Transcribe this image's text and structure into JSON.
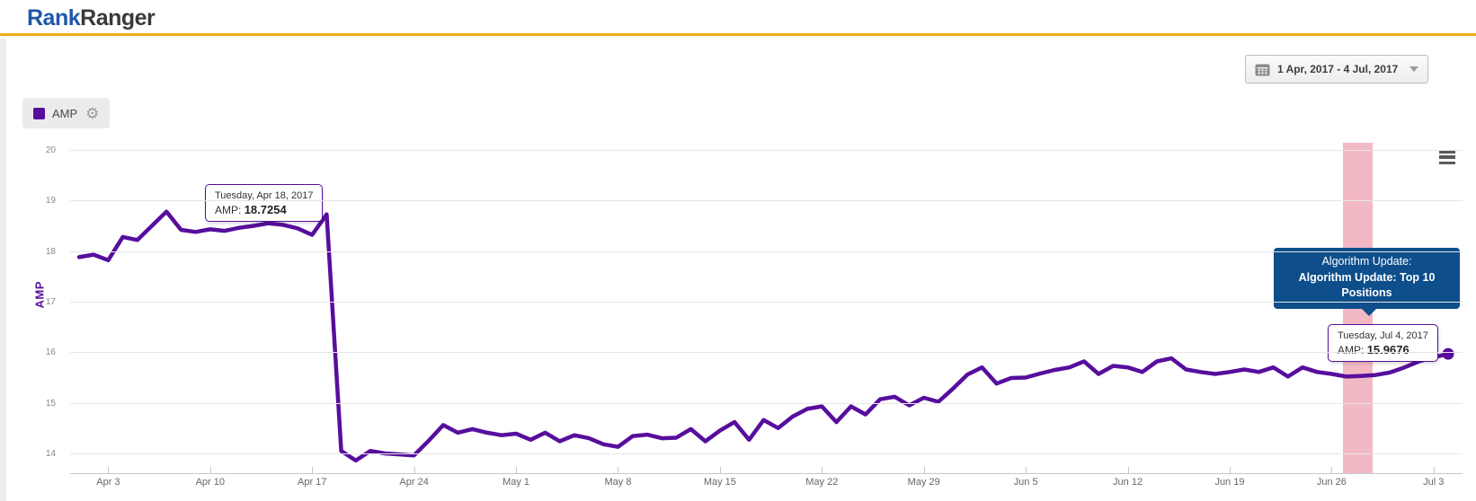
{
  "header": {
    "brand_primary": "Rank",
    "brand_secondary": "Ranger"
  },
  "toolbar": {
    "date_range_label": "1 Apr, 2017 - 4 Jul, 2017"
  },
  "legend": {
    "series_label": "AMP"
  },
  "colors": {
    "series_purple": "#570E9D",
    "brand_blue": "#1F57A9",
    "accent_gold": "#EFAD1D",
    "annotation_navy": "#0D4E8B",
    "band_pink": "#F2B8C4"
  },
  "tooltips": [
    {
      "date_label": "Tuesday, Apr 18, 2017",
      "series_label": "AMP",
      "value": "18.7254"
    },
    {
      "date_label": "Tuesday, Jul 4, 2017",
      "series_label": "AMP",
      "value": "15.9676"
    }
  ],
  "annotation": {
    "line1": "Algorithm Update:",
    "line2": "Algorithm Update: Top 10 Positions"
  },
  "chart_data": {
    "type": "line",
    "title": "",
    "ylabel": "AMP",
    "yticks": [
      20,
      19,
      18,
      17,
      16,
      15,
      14
    ],
    "ylim": [
      13.6,
      20
    ],
    "grid": true,
    "legend_position": "top-left",
    "xtick_labels": [
      "Apr 3",
      "Apr 10",
      "Apr 17",
      "Apr 24",
      "May 1",
      "May 8",
      "May 15",
      "May 22",
      "May 29",
      "Jun 5",
      "Jun 12",
      "Jun 19",
      "Jun 26",
      "Jul 3"
    ],
    "highlight_band": {
      "from_date": "Jun 27",
      "to_date": "Jun 28",
      "color": "#F2B8C4"
    },
    "end_marker": {
      "date": "Jul 4",
      "value": 15.9676
    },
    "series": [
      {
        "name": "AMP",
        "color": "#570E9D",
        "dates": [
          "Apr 1",
          "Apr 2",
          "Apr 3",
          "Apr 4",
          "Apr 5",
          "Apr 6",
          "Apr 7",
          "Apr 8",
          "Apr 9",
          "Apr 10",
          "Apr 11",
          "Apr 12",
          "Apr 13",
          "Apr 14",
          "Apr 15",
          "Apr 16",
          "Apr 17",
          "Apr 18",
          "Apr 19",
          "Apr 20",
          "Apr 21",
          "Apr 22",
          "Apr 23",
          "Apr 24",
          "Apr 25",
          "Apr 26",
          "Apr 27",
          "Apr 28",
          "Apr 29",
          "Apr 30",
          "May 1",
          "May 2",
          "May 3",
          "May 4",
          "May 5",
          "May 6",
          "May 7",
          "May 8",
          "May 9",
          "May 10",
          "May 11",
          "May 12",
          "May 13",
          "May 14",
          "May 15",
          "May 16",
          "May 17",
          "May 18",
          "May 19",
          "May 20",
          "May 21",
          "May 22",
          "May 23",
          "May 24",
          "May 25",
          "May 26",
          "May 27",
          "May 28",
          "May 29",
          "May 30",
          "May 31",
          "Jun 1",
          "Jun 2",
          "Jun 3",
          "Jun 4",
          "Jun 5",
          "Jun 6",
          "Jun 7",
          "Jun 8",
          "Jun 9",
          "Jun 10",
          "Jun 11",
          "Jun 12",
          "Jun 13",
          "Jun 14",
          "Jun 15",
          "Jun 16",
          "Jun 17",
          "Jun 18",
          "Jun 19",
          "Jun 20",
          "Jun 21",
          "Jun 22",
          "Jun 23",
          "Jun 24",
          "Jun 25",
          "Jun 26",
          "Jun 27",
          "Jun 28",
          "Jun 29",
          "Jun 30",
          "Jul 1",
          "Jul 2",
          "Jul 3",
          "Jul 4"
        ],
        "values": [
          17.88,
          17.93,
          17.82,
          18.28,
          18.22,
          18.5,
          18.78,
          18.42,
          18.38,
          18.43,
          18.4,
          18.46,
          18.5,
          18.55,
          18.52,
          18.45,
          18.32,
          18.7254,
          14.05,
          13.86,
          14.05,
          14.0,
          13.98,
          13.96,
          14.25,
          14.56,
          14.41,
          14.48,
          14.41,
          14.36,
          14.39,
          14.27,
          14.41,
          14.24,
          14.36,
          14.3,
          14.18,
          14.13,
          14.34,
          14.37,
          14.3,
          14.31,
          14.48,
          14.24,
          14.45,
          14.62,
          14.27,
          14.66,
          14.5,
          14.73,
          14.88,
          14.93,
          14.62,
          14.93,
          14.77,
          15.07,
          15.12,
          14.95,
          15.1,
          15.02,
          15.28,
          15.56,
          15.7,
          15.38,
          15.49,
          15.5,
          15.58,
          15.65,
          15.7,
          15.82,
          15.57,
          15.73,
          15.7,
          15.61,
          15.82,
          15.88,
          15.66,
          15.61,
          15.57,
          15.61,
          15.66,
          15.61,
          15.7,
          15.52,
          15.7,
          15.61,
          15.57,
          15.52,
          15.53,
          15.55,
          15.6,
          15.7,
          15.82,
          15.9,
          15.9676
        ]
      }
    ]
  }
}
